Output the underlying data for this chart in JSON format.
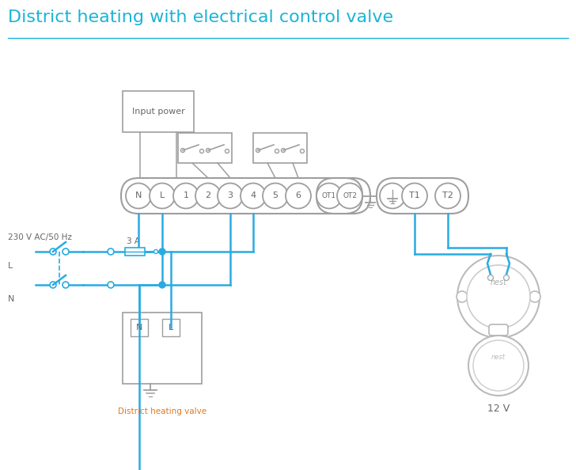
{
  "title": "District heating with electrical control valve",
  "title_color": "#1ab4d7",
  "title_fontsize": 16,
  "bg_color": "#ffffff",
  "wire_color": "#29abe2",
  "outline_color": "#9e9e9e",
  "text_color": "#666666",
  "label_230v": "230 V AC/50 Hz",
  "label_L": "L",
  "label_N": "N",
  "label_3A": "3 A",
  "label_input_power": "Input power",
  "label_valve": "District heating valve",
  "label_12v": "12 V",
  "label_nest": "nest",
  "terminal_labels": [
    "N",
    "L",
    "1",
    "2",
    "3",
    "4",
    "5",
    "6"
  ],
  "ot_labels": [
    "OT1",
    "OT2"
  ],
  "right_labels": [
    "T1",
    "T2"
  ]
}
